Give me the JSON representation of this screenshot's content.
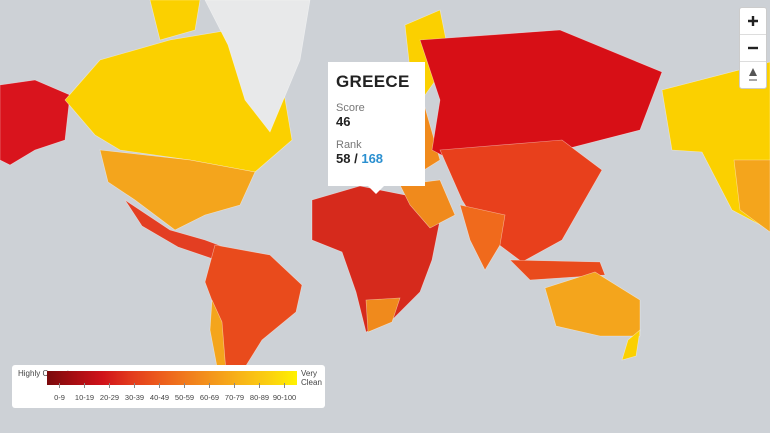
{
  "tooltip": {
    "country": "GREECE",
    "score_label": "Score",
    "score": 46,
    "rank_label": "Rank",
    "rank": 58,
    "rank_separator": "/",
    "rank_total": 168
  },
  "legend": {
    "low_label": "Highly Corrupt",
    "high_label": "Very Clean",
    "bins": [
      {
        "label": "0-9",
        "color": "#7a0a0c"
      },
      {
        "label": "10-19",
        "color": "#a80d12"
      },
      {
        "label": "20-29",
        "color": "#d0121a"
      },
      {
        "label": "30-39",
        "color": "#e23a1d"
      },
      {
        "label": "40-49",
        "color": "#ec5a1c"
      },
      {
        "label": "50-59",
        "color": "#f07a1c"
      },
      {
        "label": "60-69",
        "color": "#f4981b"
      },
      {
        "label": "70-79",
        "color": "#f8b517"
      },
      {
        "label": "80-89",
        "color": "#fbd010"
      },
      {
        "label": "90-100",
        "color": "#fff200"
      }
    ]
  }
}
